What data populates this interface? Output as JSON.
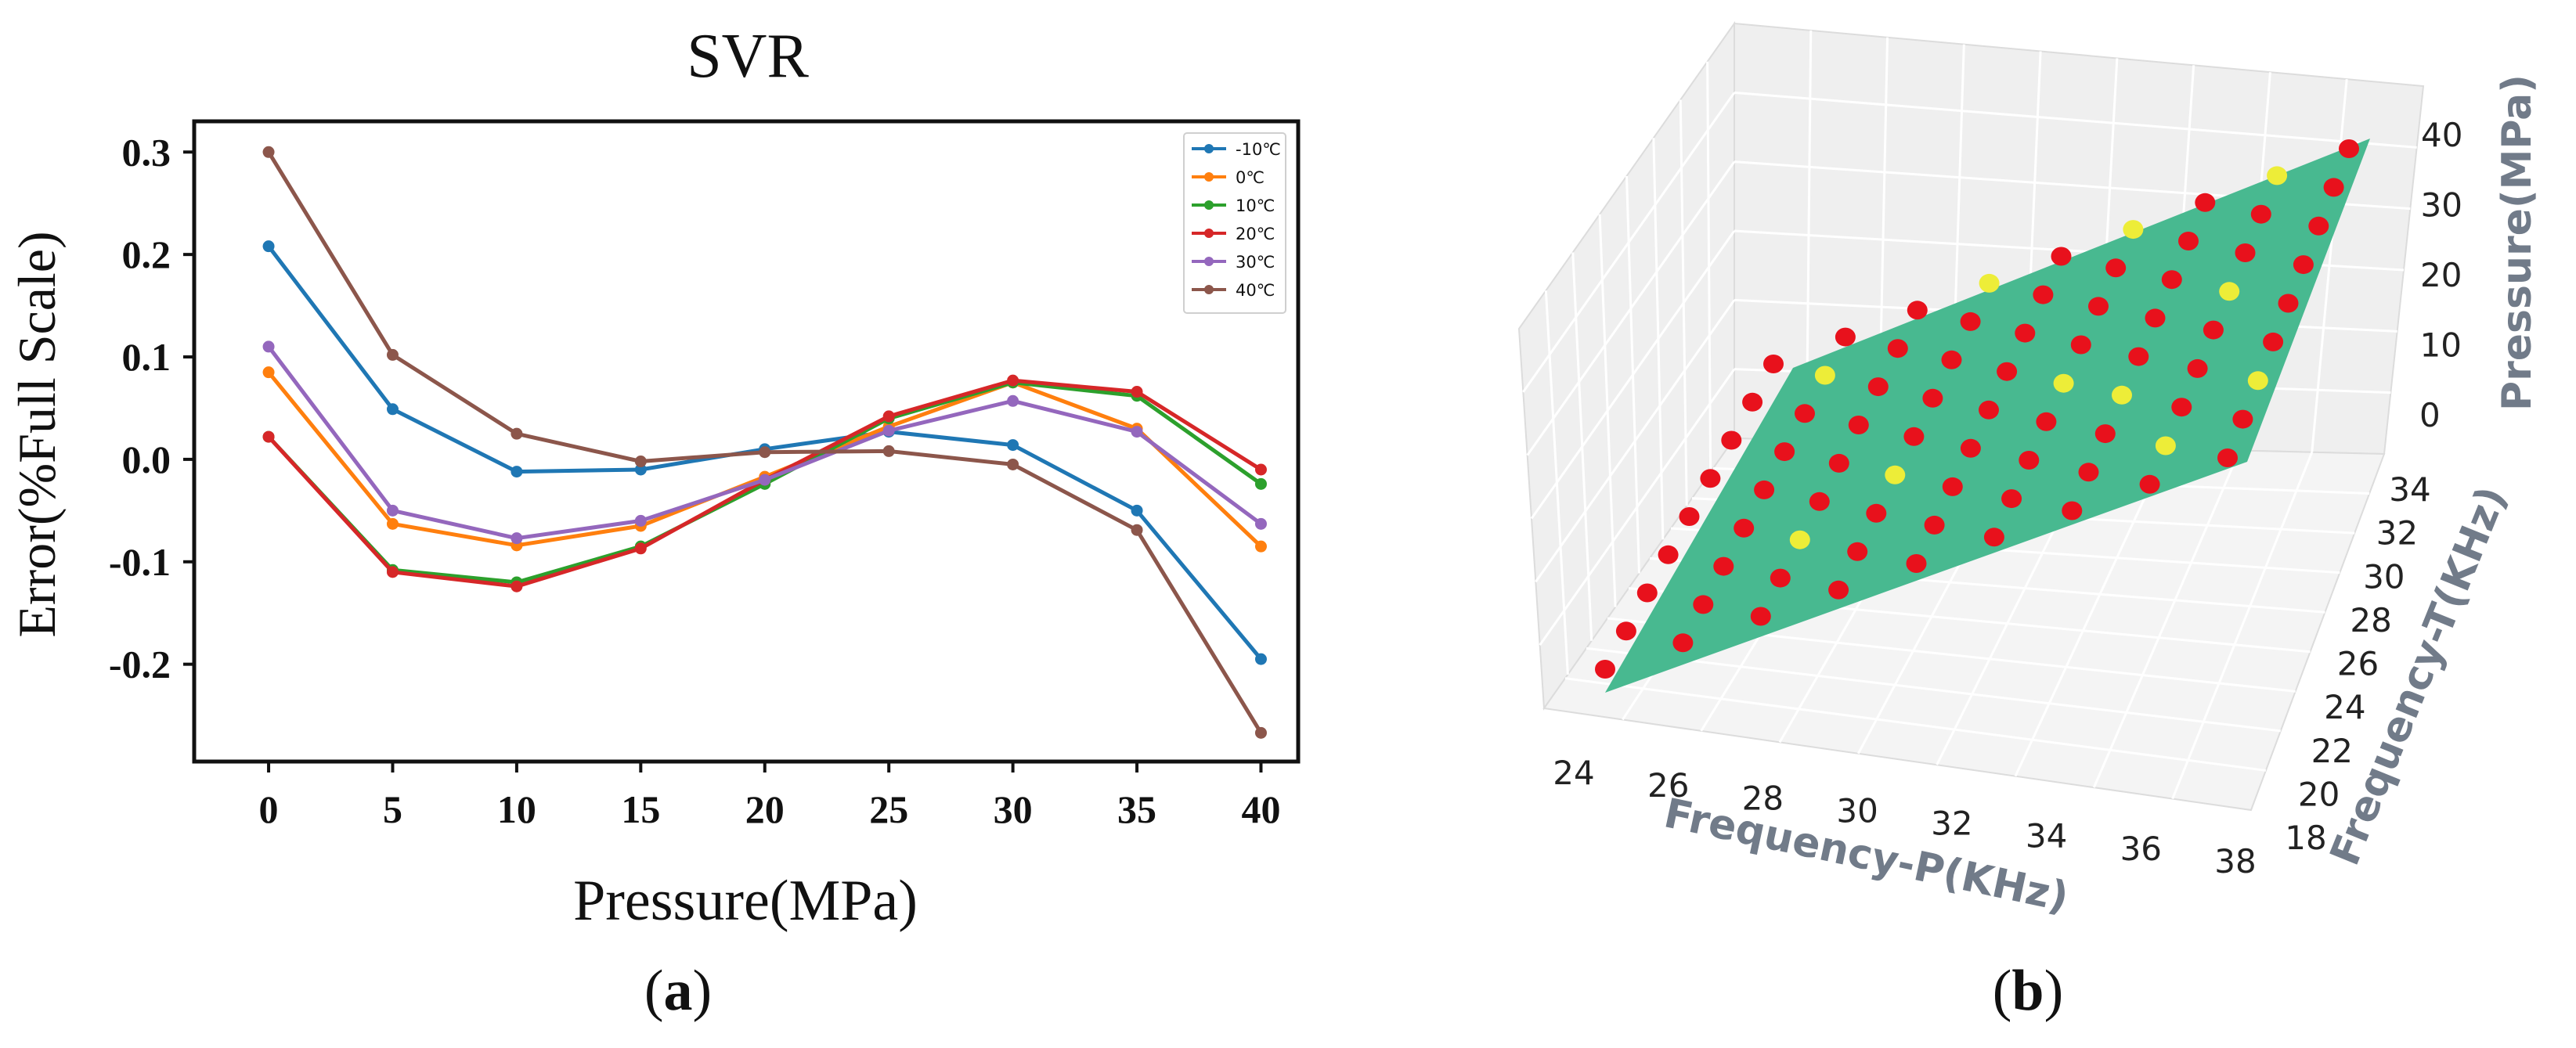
{
  "chart_data": [
    {
      "type": "line",
      "title": "SVR",
      "xlabel": "Pressure(MPa)",
      "ylabel": "Error(%Full Scale)",
      "caption_open": "(",
      "caption_letter": "a",
      "caption_close": ")",
      "x": [
        0,
        5,
        10,
        15,
        20,
        25,
        30,
        35,
        40
      ],
      "xticks": [
        "0",
        "5",
        "10",
        "15",
        "20",
        "25",
        "30",
        "35",
        "40"
      ],
      "yticks": [
        "0.3",
        "0.2",
        "0.1",
        "0.0",
        "-0.1",
        "-0.2"
      ],
      "xlim": [
        -3,
        41.5
      ],
      "ylim": [
        -0.295,
        0.33
      ],
      "grid": false,
      "legend_position": "top-right",
      "series": [
        {
          "name": "-10℃",
          "color": "#1f77b4",
          "values": [
            0.208,
            0.049,
            -0.012,
            -0.01,
            0.01,
            0.027,
            0.014,
            -0.05,
            -0.195
          ]
        },
        {
          "name": "0℃",
          "color": "#ff7f0e",
          "values": [
            0.085,
            -0.063,
            -0.084,
            -0.065,
            -0.017,
            0.032,
            0.075,
            0.03,
            -0.085
          ]
        },
        {
          "name": "10℃",
          "color": "#2ca02c",
          "values": [
            0.022,
            -0.108,
            -0.12,
            -0.085,
            -0.024,
            0.04,
            0.075,
            0.062,
            -0.024
          ]
        },
        {
          "name": "20℃",
          "color": "#d62728",
          "values": [
            0.022,
            -0.11,
            -0.124,
            -0.087,
            -0.02,
            0.042,
            0.077,
            0.066,
            -0.01
          ]
        },
        {
          "name": "30℃",
          "color": "#9467bd",
          "values": [
            0.11,
            -0.05,
            -0.077,
            -0.06,
            -0.02,
            0.028,
            0.057,
            0.027,
            -0.063
          ]
        },
        {
          "name": "40℃",
          "color": "#8c564b",
          "values": [
            0.3,
            0.102,
            0.025,
            -0.002,
            0.007,
            0.008,
            -0.005,
            -0.069,
            -0.267
          ]
        }
      ]
    },
    {
      "type": "surface-3d",
      "caption_open": "(",
      "caption_letter": "b",
      "caption_close": ")",
      "xlabel": "Frequency-P(KHz)",
      "ylabel": "Frequency-T(KHz)",
      "zlabel": "Pressure(MPa)",
      "xticks": [
        "24",
        "26",
        "28",
        "30",
        "32",
        "34",
        "36",
        "38"
      ],
      "yticks": [
        "18",
        "20",
        "22",
        "24",
        "26",
        "28",
        "30",
        "32",
        "34"
      ],
      "zticks": [
        "0",
        "10",
        "20",
        "30",
        "40"
      ],
      "surface_color": "#48b990",
      "pane_color": "#efefef",
      "point_colors": {
        "red": "#e8111c",
        "yellow": "#eded38"
      },
      "grid_rows": 9,
      "grid_cols": 9,
      "point_pattern": [
        "RRRRRRRRR",
        "RRRRRRRYR",
        "RRYRRRRRY",
        "RRRYRRYRR",
        "RRRRRYRRR",
        "RRRRRRRYR",
        "RRRRRRRRR",
        "RYRRRRRRR",
        "RRRYRYRYR"
      ]
    }
  ]
}
